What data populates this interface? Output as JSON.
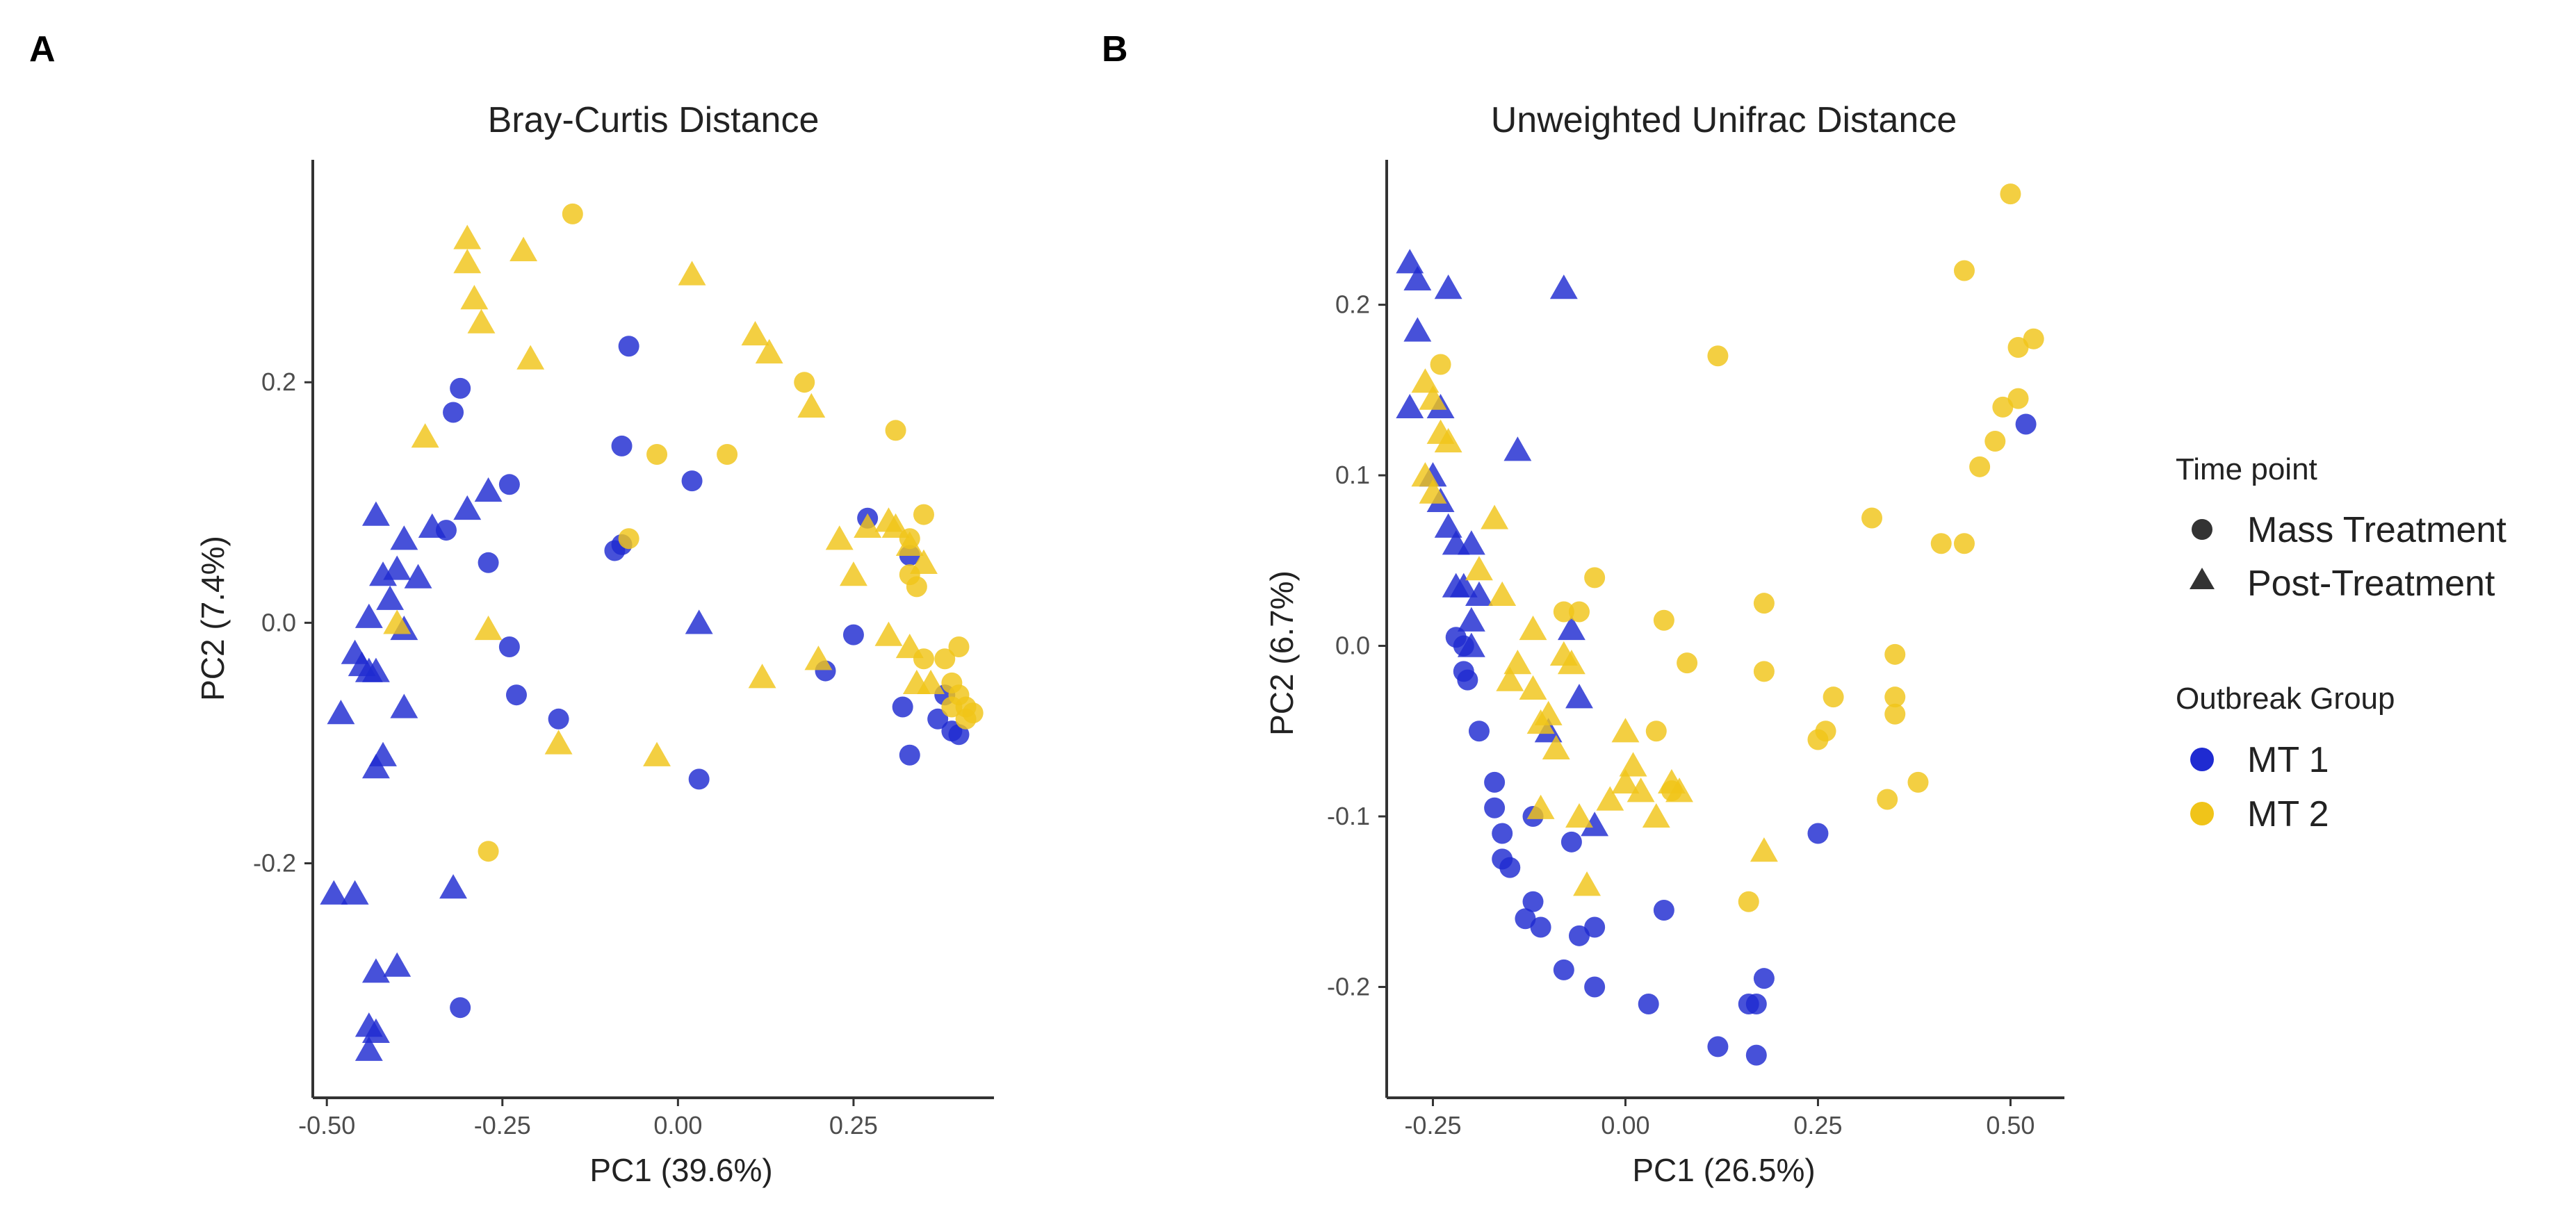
{
  "panels": {
    "a": {
      "letter": "A"
    },
    "b": {
      "letter": "B"
    }
  },
  "legend": {
    "shape_title": "Time point",
    "shape_items": [
      {
        "label": "Mass Treatment",
        "shape": "circle"
      },
      {
        "label": "Post-Treatment",
        "shape": "triangle"
      }
    ],
    "color_title": "Outbreak Group",
    "color_items": [
      {
        "label": "MT 1",
        "color": "#1f2bd1"
      },
      {
        "label": "MT 2",
        "color": "#f0c419"
      }
    ]
  },
  "chart_data": [
    {
      "type": "scatter",
      "title": "Bray-Curtis Distance",
      "xlabel": "PC1 (39.6%)",
      "ylabel": "PC2 (7.4%)",
      "xlim": [
        -0.52,
        0.45
      ],
      "ylim": [
        -0.395,
        0.385
      ],
      "xticks": [
        -0.5,
        -0.25,
        0.0,
        0.25
      ],
      "xtick_labels": [
        "-0.50",
        "-0.25",
        "0.00",
        "0.25"
      ],
      "yticks": [
        -0.2,
        0.0,
        0.2
      ],
      "ytick_labels": [
        "-0.2",
        "0.0",
        "0.2"
      ],
      "grid": false,
      "legend_position": "right",
      "series": [
        {
          "name": "MT 1",
          "shape": "circle",
          "color": "#1f2bd1",
          "points": [
            [
              -0.31,
              0.195
            ],
            [
              -0.32,
              0.175
            ],
            [
              -0.24,
              0.115
            ],
            [
              -0.33,
              0.077
            ],
            [
              -0.27,
              0.05
            ],
            [
              -0.24,
              -0.02
            ],
            [
              -0.23,
              -0.06
            ],
            [
              -0.17,
              -0.08
            ],
            [
              -0.09,
              0.06
            ],
            [
              -0.08,
              0.065
            ],
            [
              -0.08,
              0.147
            ],
            [
              -0.07,
              0.23
            ],
            [
              0.02,
              0.118
            ],
            [
              0.03,
              -0.13
            ],
            [
              0.21,
              -0.04
            ],
            [
              0.25,
              -0.01
            ],
            [
              0.27,
              0.087
            ],
            [
              0.32,
              -0.07
            ],
            [
              0.33,
              -0.11
            ],
            [
              0.33,
              0.056
            ],
            [
              0.37,
              -0.08
            ],
            [
              0.38,
              -0.06
            ],
            [
              0.39,
              -0.09
            ],
            [
              0.4,
              -0.093
            ],
            [
              -0.31,
              -0.32
            ]
          ]
        },
        {
          "name": "MT 1",
          "shape": "triangle",
          "color": "#1f2bd1",
          "points": [
            [
              -0.43,
              0.09
            ],
            [
              -0.39,
              0.07
            ],
            [
              -0.4,
              0.045
            ],
            [
              -0.42,
              0.04
            ],
            [
              -0.37,
              0.038
            ],
            [
              -0.41,
              0.02
            ],
            [
              -0.44,
              0.005
            ],
            [
              -0.46,
              -0.025
            ],
            [
              -0.45,
              -0.035
            ],
            [
              -0.44,
              -0.04
            ],
            [
              -0.43,
              -0.04
            ],
            [
              -0.39,
              -0.005
            ],
            [
              -0.35,
              0.08
            ],
            [
              -0.3,
              0.095
            ],
            [
              -0.27,
              0.11
            ],
            [
              -0.48,
              -0.075
            ],
            [
              -0.43,
              -0.12
            ],
            [
              -0.42,
              -0.11
            ],
            [
              -0.39,
              -0.07
            ],
            [
              -0.49,
              -0.225
            ],
            [
              -0.46,
              -0.225
            ],
            [
              -0.32,
              -0.22
            ],
            [
              -0.4,
              -0.285
            ],
            [
              -0.43,
              -0.29
            ],
            [
              -0.44,
              -0.335
            ],
            [
              -0.43,
              -0.34
            ],
            [
              -0.44,
              -0.355
            ],
            [
              0.03,
              0.0
            ]
          ]
        },
        {
          "name": "MT 2",
          "shape": "circle",
          "color": "#f0c419",
          "points": [
            [
              -0.15,
              0.34
            ],
            [
              -0.07,
              0.07
            ],
            [
              -0.03,
              0.14
            ],
            [
              0.07,
              0.14
            ],
            [
              0.18,
              0.2
            ],
            [
              0.31,
              0.16
            ],
            [
              0.35,
              0.09
            ],
            [
              0.33,
              0.07
            ],
            [
              0.34,
              0.03
            ],
            [
              0.33,
              0.04
            ],
            [
              0.35,
              -0.03
            ],
            [
              0.38,
              -0.03
            ],
            [
              0.39,
              -0.05
            ],
            [
              0.4,
              -0.02
            ],
            [
              0.4,
              -0.06
            ],
            [
              0.41,
              -0.07
            ],
            [
              0.41,
              -0.08
            ],
            [
              0.42,
              -0.075
            ],
            [
              0.39,
              -0.07
            ],
            [
              -0.27,
              -0.19
            ]
          ]
        },
        {
          "name": "MT 2",
          "shape": "triangle",
          "color": "#f0c419",
          "points": [
            [
              -0.3,
              0.32
            ],
            [
              -0.3,
              0.3
            ],
            [
              -0.29,
              0.27
            ],
            [
              -0.28,
              0.25
            ],
            [
              -0.22,
              0.31
            ],
            [
              -0.21,
              0.22
            ],
            [
              -0.36,
              0.155
            ],
            [
              0.02,
              0.29
            ],
            [
              0.11,
              0.24
            ],
            [
              0.13,
              0.225
            ],
            [
              0.19,
              0.18
            ],
            [
              0.23,
              0.07
            ],
            [
              0.25,
              0.04
            ],
            [
              0.27,
              0.08
            ],
            [
              0.3,
              0.085
            ],
            [
              0.31,
              0.08
            ],
            [
              0.33,
              0.065
            ],
            [
              0.35,
              0.05
            ],
            [
              0.3,
              -0.01
            ],
            [
              0.33,
              -0.02
            ],
            [
              0.34,
              -0.05
            ],
            [
              0.36,
              -0.05
            ],
            [
              0.2,
              -0.03
            ],
            [
              0.12,
              -0.045
            ],
            [
              -0.03,
              -0.11
            ],
            [
              -0.17,
              -0.1
            ],
            [
              -0.27,
              -0.005
            ],
            [
              -0.4,
              0.0
            ]
          ]
        }
      ]
    },
    {
      "type": "scatter",
      "title": "Unweighted Unifrac Distance",
      "xlabel": "PC1 (26.5%)",
      "ylabel": "PC2 (6.7%)",
      "xlim": [
        -0.31,
        0.57
      ],
      "ylim": [
        -0.265,
        0.285
      ],
      "xticks": [
        -0.25,
        0.0,
        0.25,
        0.5
      ],
      "xtick_labels": [
        "-0.25",
        "0.00",
        "0.25",
        "0.50"
      ],
      "yticks": [
        -0.2,
        -0.1,
        0.0,
        0.1,
        0.2
      ],
      "ytick_labels": [
        "-0.2",
        "-0.1",
        "0.0",
        "0.1",
        "0.2"
      ],
      "grid": false,
      "legend_position": "right",
      "series": [
        {
          "name": "MT 1",
          "shape": "circle",
          "color": "#1f2bd1",
          "points": [
            [
              -0.22,
              0.005
            ],
            [
              -0.21,
              -0.015
            ],
            [
              -0.205,
              -0.02
            ],
            [
              -0.21,
              0.0
            ],
            [
              -0.19,
              -0.05
            ],
            [
              -0.17,
              -0.08
            ],
            [
              -0.17,
              -0.095
            ],
            [
              -0.16,
              -0.11
            ],
            [
              -0.16,
              -0.125
            ],
            [
              -0.15,
              -0.13
            ],
            [
              -0.12,
              -0.15
            ],
            [
              -0.13,
              -0.16
            ],
            [
              -0.11,
              -0.165
            ],
            [
              -0.07,
              -0.115
            ],
            [
              -0.06,
              -0.17
            ],
            [
              -0.08,
              -0.19
            ],
            [
              -0.04,
              -0.2
            ],
            [
              0.03,
              -0.21
            ],
            [
              -0.04,
              -0.165
            ],
            [
              0.05,
              -0.155
            ],
            [
              0.12,
              -0.235
            ],
            [
              0.16,
              -0.21
            ],
            [
              0.17,
              -0.21
            ],
            [
              0.17,
              -0.24
            ],
            [
              0.18,
              -0.195
            ],
            [
              0.25,
              -0.11
            ],
            [
              0.52,
              0.13
            ],
            [
              -0.12,
              -0.1
            ]
          ]
        },
        {
          "name": "MT 1",
          "shape": "triangle",
          "color": "#1f2bd1",
          "points": [
            [
              -0.28,
              0.225
            ],
            [
              -0.27,
              0.215
            ],
            [
              -0.27,
              0.185
            ],
            [
              -0.23,
              0.21
            ],
            [
              -0.08,
              0.21
            ],
            [
              -0.28,
              0.14
            ],
            [
              -0.25,
              0.1
            ],
            [
              -0.24,
              0.085
            ],
            [
              -0.23,
              0.07
            ],
            [
              -0.22,
              0.06
            ],
            [
              -0.2,
              0.06
            ],
            [
              -0.22,
              0.035
            ],
            [
              -0.21,
              0.035
            ],
            [
              -0.19,
              0.03
            ],
            [
              -0.2,
              0.015
            ],
            [
              -0.2,
              0.0
            ],
            [
              -0.14,
              0.115
            ],
            [
              -0.1,
              -0.05
            ],
            [
              -0.07,
              0.01
            ],
            [
              -0.06,
              -0.03
            ],
            [
              -0.04,
              -0.105
            ],
            [
              -0.24,
              0.14
            ]
          ]
        },
        {
          "name": "MT 2",
          "shape": "circle",
          "color": "#f0c419",
          "points": [
            [
              -0.24,
              0.165
            ],
            [
              -0.04,
              0.04
            ],
            [
              -0.08,
              0.02
            ],
            [
              0.05,
              0.015
            ],
            [
              0.08,
              -0.01
            ],
            [
              0.12,
              0.17
            ],
            [
              0.18,
              0.025
            ],
            [
              0.18,
              -0.015
            ],
            [
              0.04,
              -0.05
            ],
            [
              0.06,
              -0.085
            ],
            [
              0.16,
              -0.15
            ],
            [
              0.25,
              -0.055
            ],
            [
              0.26,
              -0.05
            ],
            [
              0.27,
              -0.03
            ],
            [
              0.32,
              0.075
            ],
            [
              0.34,
              -0.09
            ],
            [
              0.35,
              -0.005
            ],
            [
              0.35,
              -0.03
            ],
            [
              0.35,
              -0.04
            ],
            [
              0.38,
              -0.08
            ],
            [
              0.41,
              0.06
            ],
            [
              0.44,
              0.06
            ],
            [
              0.44,
              0.22
            ],
            [
              0.46,
              0.105
            ],
            [
              0.48,
              0.12
            ],
            [
              0.49,
              0.14
            ],
            [
              0.5,
              0.265
            ],
            [
              0.51,
              0.175
            ],
            [
              0.51,
              0.145
            ],
            [
              0.53,
              0.18
            ],
            [
              -0.06,
              0.02
            ]
          ]
        },
        {
          "name": "MT 2",
          "shape": "triangle",
          "color": "#f0c419",
          "points": [
            [
              -0.26,
              0.155
            ],
            [
              -0.25,
              0.145
            ],
            [
              -0.24,
              0.125
            ],
            [
              -0.23,
              0.12
            ],
            [
              -0.26,
              0.1
            ],
            [
              -0.25,
              0.09
            ],
            [
              -0.17,
              0.075
            ],
            [
              -0.19,
              0.045
            ],
            [
              -0.16,
              0.03
            ],
            [
              -0.12,
              0.01
            ],
            [
              -0.14,
              -0.01
            ],
            [
              -0.15,
              -0.02
            ],
            [
              -0.12,
              -0.025
            ],
            [
              -0.1,
              -0.04
            ],
            [
              -0.11,
              -0.045
            ],
            [
              -0.09,
              -0.06
            ],
            [
              -0.08,
              -0.005
            ],
            [
              -0.07,
              -0.01
            ],
            [
              -0.11,
              -0.095
            ],
            [
              -0.06,
              -0.1
            ],
            [
              -0.05,
              -0.14
            ],
            [
              -0.02,
              -0.09
            ],
            [
              0.0,
              -0.05
            ],
            [
              0.0,
              -0.08
            ],
            [
              0.01,
              -0.07
            ],
            [
              0.02,
              -0.085
            ],
            [
              0.06,
              -0.08
            ],
            [
              0.07,
              -0.085
            ],
            [
              0.18,
              -0.12
            ],
            [
              0.04,
              -0.1
            ]
          ]
        }
      ]
    }
  ]
}
